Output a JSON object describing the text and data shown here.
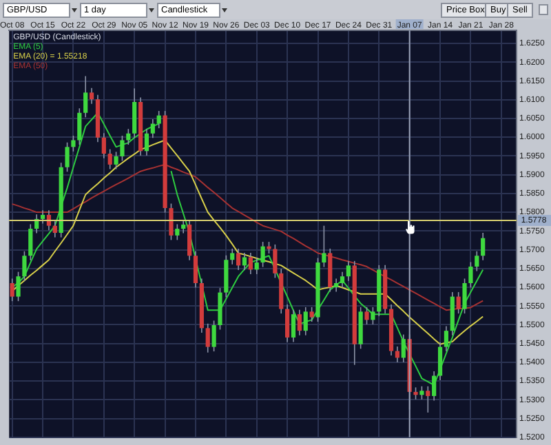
{
  "chart_data": {
    "type": "candlestick",
    "title": "GBP/USD (Candlestick)",
    "annotations": [
      "GBP/USD",
      "1 day",
      "Candlestick",
      "Price Box",
      "Buy",
      "Sell"
    ],
    "categories": [
      "Oct 08",
      null,
      null,
      null,
      null,
      "Oct 15",
      null,
      null,
      null,
      null,
      "Oct 22",
      null,
      null,
      null,
      null,
      "Oct 29",
      null,
      null,
      null,
      null,
      "Nov 05",
      null,
      null,
      null,
      null,
      "Nov 12",
      null,
      null,
      null,
      null,
      "Nov 19",
      null,
      null,
      null,
      null,
      "Nov 26",
      null,
      null,
      null,
      null,
      "Dec 03",
      null,
      null,
      null,
      null,
      "Dec 10",
      null,
      null,
      null,
      null,
      "Dec 17",
      null,
      null,
      null,
      null,
      "Dec 24",
      null,
      null,
      null,
      null,
      "Dec 31",
      null,
      null,
      null,
      null,
      "Jan 07",
      null,
      null,
      null,
      null,
      "Jan 14",
      null,
      null,
      null,
      null,
      "Jan 21",
      null,
      null,
      null,
      null,
      "Jan 28",
      null,
      null
    ],
    "ohlc": [
      [
        1.5611,
        1.5623,
        1.5563,
        1.5575
      ],
      [
        1.5575,
        1.5641,
        1.5563,
        1.5629
      ],
      [
        1.5629,
        1.5696,
        1.5617,
        1.5684
      ],
      [
        1.5684,
        1.5768,
        1.5672,
        1.5756
      ],
      [
        1.5756,
        1.5794,
        1.5744,
        1.5782
      ],
      [
        1.5782,
        1.5805,
        1.577,
        1.5793
      ],
      [
        1.5793,
        1.5805,
        1.5752,
        1.5764
      ],
      [
        1.5764,
        1.5776,
        1.5733,
        1.5745
      ],
      [
        1.5745,
        1.5932,
        1.5733,
        1.592
      ],
      [
        1.592,
        1.5986,
        1.5908,
        1.5974
      ],
      [
        1.5974,
        1.6004,
        1.5962,
        1.5992
      ],
      [
        1.5992,
        1.6077,
        1.598,
        1.6065
      ],
      [
        1.6065,
        1.6163,
        1.6053,
        1.6119
      ],
      [
        1.6119,
        1.6131,
        1.6089,
        1.6101
      ],
      [
        1.6101,
        1.6113,
        1.5987,
        1.5999
      ],
      [
        1.5999,
        1.6011,
        1.5944,
        1.5956
      ],
      [
        1.5956,
        1.5968,
        1.5915,
        1.5927
      ],
      [
        1.5927,
        1.5961,
        1.5915,
        1.5949
      ],
      [
        1.5949,
        1.6004,
        1.5937,
        1.5992
      ],
      [
        1.5992,
        1.6022,
        1.598,
        1.601
      ],
      [
        1.601,
        1.613,
        1.5998,
        1.6094
      ],
      [
        1.6094,
        1.6106,
        1.5951,
        1.5963
      ],
      [
        1.5963,
        1.6022,
        1.5951,
        1.601
      ],
      [
        1.601,
        1.6048,
        1.5998,
        1.6036
      ],
      [
        1.6036,
        1.607,
        1.6024,
        1.6058
      ],
      [
        1.6058,
        1.607,
        1.5799,
        1.5811
      ],
      [
        1.5811,
        1.5823,
        1.5726,
        1.5738
      ],
      [
        1.5738,
        1.5768,
        1.5726,
        1.5756
      ],
      [
        1.5756,
        1.5779,
        1.5744,
        1.5767
      ],
      [
        1.5767,
        1.5779,
        1.5672,
        1.5684
      ],
      [
        1.5684,
        1.5696,
        1.5599,
        1.5611
      ],
      [
        1.5611,
        1.5623,
        1.5479,
        1.5491
      ],
      [
        1.5491,
        1.5503,
        1.5426,
        1.5441
      ],
      [
        1.5441,
        1.5511,
        1.5429,
        1.5499
      ],
      [
        1.5499,
        1.5598,
        1.5487,
        1.5586
      ],
      [
        1.5586,
        1.5685,
        1.5574,
        1.5673
      ],
      [
        1.5673,
        1.5703,
        1.5661,
        1.5691
      ],
      [
        1.5691,
        1.5703,
        1.5646,
        1.5658
      ],
      [
        1.5658,
        1.5692,
        1.5646,
        1.568
      ],
      [
        1.568,
        1.5692,
        1.5635,
        1.5647
      ],
      [
        1.5647,
        1.5678,
        1.5635,
        1.5666
      ],
      [
        1.5666,
        1.5721,
        1.5654,
        1.5709
      ],
      [
        1.5709,
        1.5721,
        1.569,
        1.5702
      ],
      [
        1.5702,
        1.5714,
        1.5625,
        1.5637
      ],
      [
        1.5637,
        1.5649,
        1.553,
        1.5542
      ],
      [
        1.5542,
        1.5554,
        1.5454,
        1.5466
      ],
      [
        1.5466,
        1.554,
        1.5454,
        1.5528
      ],
      [
        1.5528,
        1.554,
        1.5472,
        1.5484
      ],
      [
        1.5484,
        1.5547,
        1.5472,
        1.5535
      ],
      [
        1.5535,
        1.5547,
        1.5508,
        1.552
      ],
      [
        1.552,
        1.5678,
        1.5508,
        1.5666
      ],
      [
        1.5666,
        1.5764,
        1.5654,
        1.5691
      ],
      [
        1.5691,
        1.5703,
        1.5588,
        1.56
      ],
      [
        1.56,
        1.5623,
        1.5588,
        1.5611
      ],
      [
        1.5611,
        1.5641,
        1.5599,
        1.5629
      ],
      [
        1.5629,
        1.567,
        1.5617,
        1.5658
      ],
      [
        1.5658,
        1.567,
        1.5393,
        1.5448
      ],
      [
        1.5448,
        1.5547,
        1.5436,
        1.5535
      ],
      [
        1.5535,
        1.5547,
        1.5501,
        1.5513
      ],
      [
        1.5513,
        1.5547,
        1.5501,
        1.5535
      ],
      [
        1.5535,
        1.5659,
        1.5523,
        1.5647
      ],
      [
        1.5647,
        1.5659,
        1.553,
        1.5542
      ],
      [
        1.5542,
        1.5554,
        1.5418,
        1.543
      ],
      [
        1.543,
        1.5442,
        1.54,
        1.5412
      ],
      [
        1.5412,
        1.5474,
        1.54,
        1.5462
      ],
      [
        1.5462,
        1.5474,
        1.5274,
        1.5321
      ],
      [
        1.5321,
        1.5333,
        1.5301,
        1.5313
      ],
      [
        1.5313,
        1.5336,
        1.5301,
        1.5324
      ],
      [
        1.5324,
        1.5336,
        1.5266,
        1.531
      ],
      [
        1.531,
        1.5376,
        1.5298,
        1.5364
      ],
      [
        1.5364,
        1.5453,
        1.5352,
        1.5441
      ],
      [
        1.5441,
        1.5496,
        1.5429,
        1.5484
      ],
      [
        1.5484,
        1.5587,
        1.5472,
        1.5575
      ],
      [
        1.5575,
        1.5587,
        1.553,
        1.5542
      ],
      [
        1.5542,
        1.5623,
        1.553,
        1.5611
      ],
      [
        1.5611,
        1.5667,
        1.5599,
        1.5655
      ],
      [
        1.5655,
        1.5696,
        1.5643,
        1.5684
      ],
      [
        1.5684,
        1.5745,
        1.5672,
        1.5731
      ],
      null,
      null,
      null,
      null,
      null
    ],
    "colors": [
      "#d23c3c",
      "#3fd93f",
      "#3fd93f",
      "#3fd93f",
      "#3fd93f",
      "#3fd93f",
      "#d23c3c",
      "#d23c3c",
      "#3fd93f",
      "#3fd93f",
      "#3fd93f",
      "#3fd93f",
      "#3fd93f",
      "#d23c3c",
      "#d23c3c",
      "#d23c3c",
      "#d23c3c",
      "#3fd93f",
      "#3fd93f",
      "#3fd93f",
      "#3fd93f",
      "#d23c3c",
      "#3fd93f",
      "#3fd93f",
      "#3fd93f",
      "#d23c3c",
      "#d23c3c",
      "#3fd93f",
      "#3fd93f",
      "#d23c3c",
      "#d23c3c",
      "#d23c3c",
      "#d23c3c",
      "#3fd93f",
      "#3fd93f",
      "#3fd93f",
      "#3fd93f",
      "#d23c3c",
      "#3fd93f",
      "#d23c3c",
      "#3fd93f",
      "#3fd93f",
      "#d23c3c",
      "#d23c3c",
      "#d23c3c",
      "#d23c3c",
      "#3fd93f",
      "#d23c3c",
      "#3fd93f",
      "#d23c3c",
      "#3fd93f",
      "#3fd93f",
      "#d23c3c",
      "#3fd93f",
      "#3fd93f",
      "#3fd93f",
      "#d23c3c",
      "#3fd93f",
      "#d23c3c",
      "#3fd93f",
      "#3fd93f",
      "#d23c3c",
      "#d23c3c",
      "#d23c3c",
      "#3fd93f",
      "#d23c3c",
      "#d23c3c",
      "#3fd93f",
      "#d23c3c",
      "#3fd93f",
      "#3fd93f",
      "#3fd93f",
      "#3fd93f",
      "#d23c3c",
      "#3fd93f",
      "#3fd93f",
      "#3fd93f",
      "#3fd93f",
      null,
      null,
      null,
      null,
      null
    ],
    "series": [
      {
        "name": "EMA (5)",
        "type": "line",
        "color": "#2ecc40",
        "values": [
          1.56,
          1.5612,
          1.5629,
          1.5666,
          1.5702,
          1.5723,
          1.5743,
          1.5764,
          1.5815,
          1.5865,
          1.592,
          1.5974,
          1.6029,
          1.6047,
          1.6065,
          1.6035,
          1.6004,
          1.5974,
          1.598,
          1.5985,
          1.5999,
          1.601,
          1.6021,
          1.6029,
          1.6036,
          null,
          1.591,
          1.5847,
          1.5796,
          1.5745,
          1.5676,
          1.5608,
          1.5539,
          1.5539,
          1.5539,
          1.5569,
          1.5599,
          1.5629,
          1.5648,
          1.5666,
          1.5672,
          1.5678,
          1.5684,
          1.5648,
          1.5611,
          1.5575,
          1.5538,
          1.5502,
          1.5508,
          1.5513,
          1.554,
          1.5566,
          1.5593,
          1.5606,
          1.5618,
          1.5598,
          1.5577,
          1.5557,
          1.5543,
          1.5528,
          1.5528,
          1.5528,
          1.5528,
          1.5492,
          1.5455,
          1.5422,
          1.539,
          1.5357,
          1.5348,
          1.5339,
          1.5381,
          1.5424,
          1.5466,
          1.5512,
          1.5557,
          1.5587,
          1.5617,
          1.5647,
          null,
          null,
          null,
          null,
          null
        ]
      },
      {
        "name": "EMA (20) = 1.55218",
        "type": "line",
        "color": "#d8d04a",
        "values": [
          1.559,
          1.5604,
          1.5618,
          1.5632,
          1.5645,
          1.5659,
          1.5673,
          1.5696,
          1.5718,
          1.5741,
          1.5764,
          1.5806,
          1.5847,
          1.5862,
          1.5876,
          1.5891,
          1.5905,
          1.592,
          1.5932,
          1.5944,
          1.5955,
          1.5967,
          1.5973,
          1.598,
          1.5986,
          1.5992,
          1.5971,
          1.5951,
          1.593,
          1.5909,
          1.5873,
          1.5836,
          1.58,
          1.5779,
          1.5759,
          1.5738,
          1.5715,
          1.5691,
          1.5687,
          1.5682,
          1.5677,
          1.5672,
          1.5668,
          1.5663,
          1.5658,
          1.5648,
          1.5638,
          1.5628,
          1.5618,
          1.5606,
          1.5593,
          1.5597,
          1.56,
          1.5604,
          1.5599,
          1.5593,
          1.5588,
          1.5582,
          1.5582,
          1.5582,
          1.5582,
          1.5582,
          1.5567,
          1.5551,
          1.5536,
          1.552,
          1.5506,
          1.5491,
          1.5477,
          1.5462,
          1.5448,
          1.5452,
          1.5455,
          1.547,
          1.5484,
          1.5497,
          1.5509,
          1.5522,
          null,
          null,
          null,
          null,
          null
        ]
      },
      {
        "name": "EMA (50)",
        "type": "line",
        "color": "#a83232",
        "values": [
          1.5822,
          1.5817,
          1.5811,
          1.5806,
          1.58,
          1.58,
          1.58,
          1.58,
          1.58,
          1.58,
          1.5809,
          1.5819,
          1.5828,
          1.5838,
          1.5847,
          1.5856,
          1.5865,
          1.5874,
          1.5882,
          1.5891,
          1.59,
          1.5909,
          1.5914,
          1.5918,
          1.5923,
          1.5927,
          1.592,
          1.5914,
          1.5907,
          1.5901,
          1.5894,
          1.588,
          1.5866,
          1.5853,
          1.5839,
          1.5825,
          1.5811,
          1.5802,
          1.5792,
          1.5783,
          1.5773,
          1.5764,
          1.5759,
          1.5754,
          1.5749,
          1.5739,
          1.573,
          1.572,
          1.571,
          1.5701,
          1.5691,
          1.5687,
          1.5682,
          1.5678,
          1.5673,
          1.5669,
          1.5664,
          1.566,
          1.5655,
          1.5646,
          1.5637,
          1.5628,
          1.562,
          1.5611,
          1.5602,
          1.5593,
          1.5584,
          1.5575,
          1.5566,
          1.5557,
          1.5548,
          1.5539,
          1.5541,
          1.5543,
          1.5544,
          1.5546,
          1.5555,
          1.5564,
          null,
          null,
          null,
          null,
          null
        ]
      }
    ],
    "ylim": [
      1.52,
      1.6285
    ],
    "yticks": [
      {
        "value": 1.52,
        "label": "1.5200"
      },
      {
        "value": 1.525,
        "label": "1.5250"
      },
      {
        "value": 1.53,
        "label": "1.5300"
      },
      {
        "value": 1.535,
        "label": "1.5350"
      },
      {
        "value": 1.54,
        "label": "1.5400"
      },
      {
        "value": 1.545,
        "label": "1.5450"
      },
      {
        "value": 1.55,
        "label": "1.5500"
      },
      {
        "value": 1.555,
        "label": "1.5550"
      },
      {
        "value": 1.56,
        "label": "1.5600"
      },
      {
        "value": 1.565,
        "label": "1.5650"
      },
      {
        "value": 1.57,
        "label": "1.5700"
      },
      {
        "value": 1.575,
        "label": "1.5750"
      },
      {
        "value": 1.58,
        "label": "1.5800"
      },
      {
        "value": 1.585,
        "label": "1.5850"
      },
      {
        "value": 1.59,
        "label": "1.5900"
      },
      {
        "value": 1.595,
        "label": "1.5950"
      },
      {
        "value": 1.6,
        "label": "1.6000"
      },
      {
        "value": 1.605,
        "label": "1.6050"
      },
      {
        "value": 1.61,
        "label": "1.6100"
      },
      {
        "value": 1.615,
        "label": "1.6150"
      },
      {
        "value": 1.62,
        "label": "1.6200"
      },
      {
        "value": 1.625,
        "label": "1.6250"
      }
    ],
    "ref_lines": [
      {
        "axis": "y",
        "value": 1.5778,
        "label": "1.5778",
        "color": "#d8d070"
      },
      {
        "axis": "x",
        "value": "Jan 07",
        "color": "#9aa3b8"
      }
    ],
    "grid": true,
    "legend": "top left"
  }
}
